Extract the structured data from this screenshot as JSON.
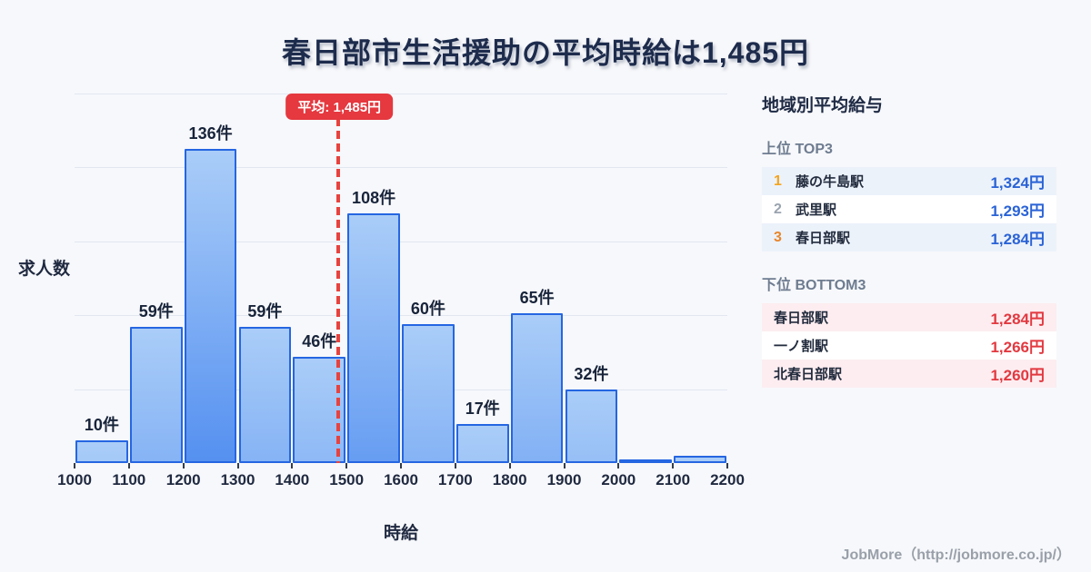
{
  "title": "春日部市生活援助の平均時給は1,485円",
  "chart_data": {
    "type": "bar",
    "title": "春日部市生活援助の平均時給は1,485円",
    "xlabel": "時給",
    "ylabel": "求人数",
    "bin_edges": [
      1000,
      1100,
      1200,
      1300,
      1400,
      1500,
      1600,
      1700,
      1800,
      1900,
      2000,
      2100,
      2200
    ],
    "values": [
      10,
      59,
      136,
      59,
      46,
      108,
      60,
      17,
      65,
      32,
      1,
      3
    ],
    "bar_labels": [
      "10件",
      "59件",
      "136件",
      "59件",
      "46件",
      "108件",
      "60件",
      "17件",
      "65件",
      "32件",
      "",
      ""
    ],
    "x_ticks": [
      "1000",
      "1100",
      "1200",
      "1300",
      "1400",
      "1500",
      "1600",
      "1700",
      "1800",
      "1900",
      "2000",
      "2100",
      "2200"
    ],
    "ylim": [
      0,
      160
    ],
    "grid": true,
    "legend": "none",
    "average": {
      "value": 1485,
      "label": "平均: 1,485円"
    }
  },
  "sidebar": {
    "heading": "地域別平均給与",
    "top3": {
      "heading": "上位 TOP3",
      "rows": [
        {
          "rank": "1",
          "name": "藤の牛島駅",
          "value": "1,324円"
        },
        {
          "rank": "2",
          "name": "武里駅",
          "value": "1,293円"
        },
        {
          "rank": "3",
          "name": "春日部駅",
          "value": "1,284円"
        }
      ]
    },
    "bottom3": {
      "heading": "下位 BOTTOM3",
      "rows": [
        {
          "name": "春日部駅",
          "value": "1,284円"
        },
        {
          "name": "一ノ割駅",
          "value": "1,266円"
        },
        {
          "name": "北春日部駅",
          "value": "1,260円"
        }
      ]
    }
  },
  "footer": {
    "credit": "JobMore（http://jobmore.co.jp/）"
  },
  "colors": {
    "page_bg": "#f7f8fb",
    "title_text": "#1d2b4c",
    "bar_fill_top": "#aacdf8",
    "bar_fill_bottom": "#4585ef",
    "bar_border": "#2566e2",
    "gridline": "#e2e7f0",
    "average_red": "#e5383f",
    "salary_blue": "#2a63d6",
    "salary_red": "#e23940",
    "rank_gold": "#f3a51f",
    "rank_silver": "#9aa3af",
    "rank_bronze": "#e8862b",
    "top_row_bg": "#ecf2fa",
    "bottom_row_bg": "#fdedf0"
  }
}
